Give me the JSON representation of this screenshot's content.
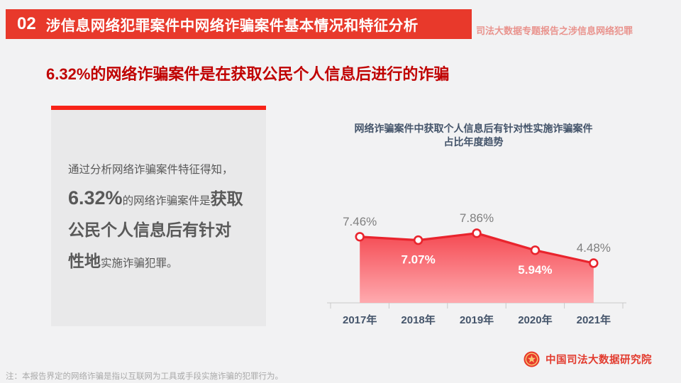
{
  "header": {
    "number": "02",
    "title": "涉信息网络犯罪案件中网络诈骗案件基本情况和特征分析",
    "corner_note": "司法大数据专题报告之涉信息网络犯罪"
  },
  "headline": "6.32%的网络诈骗案件是在获取公民个人信息后进行的诈骗",
  "info_box": {
    "intro": "通过分析网络诈骗案件特征得知，",
    "stat": "6.32%",
    "after_stat": "的网络诈骗案件是",
    "bold": "获取公民个人信息后有针对性地",
    "tail": "实施诈骗犯罪。"
  },
  "chart_data": {
    "type": "area",
    "title_line1": "网络诈骗案件中获取个人信息后有针对性实施诈骗案件",
    "title_line2": "占比年度趋势",
    "categories": [
      "2017年",
      "2018年",
      "2019年",
      "2020年",
      "2021年"
    ],
    "values": [
      7.46,
      7.07,
      7.86,
      5.94,
      4.48
    ],
    "labels": [
      "7.46%",
      "7.07%",
      "7.86%",
      "5.94%",
      "4.48%"
    ],
    "label_positions": [
      "above",
      "below",
      "above",
      "below",
      "above"
    ],
    "xlabel": "",
    "ylabel": "",
    "ylim": [
      0,
      10
    ],
    "grid": false,
    "legend": false,
    "colors": {
      "line": "#e9242d",
      "marker_fill": "#ffffff",
      "area_top": "#f5454e",
      "area_bottom": "#ffa6ab",
      "label_above": "#7f7f7f",
      "label_below": "#ffffff",
      "axis": "#c9c9c9",
      "tick_label": "#44546a"
    }
  },
  "footer": {
    "note": "注：本报告界定的网络诈骗是指以互联网为工具或手段实施诈骗的犯罪行为。",
    "org": "中国司法大数据研究院"
  },
  "colors": {
    "page_bg": "#f2f2f3",
    "header_bar": "#e8392b",
    "corner_note": "#e9938d",
    "headline": "#c00000",
    "info_box_bg": "#e9e9ea",
    "info_accent": "#f82318",
    "body_text": "#595959",
    "chart_title": "#44546a",
    "org_text": "#e23b2e"
  }
}
